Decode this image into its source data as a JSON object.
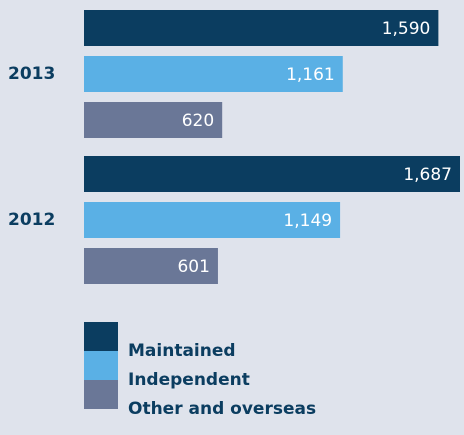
{
  "chart_data": {
    "type": "bar",
    "orientation": "horizontal",
    "categories": [
      "2013",
      "2012"
    ],
    "series": [
      {
        "name": "Maintained",
        "color": "#0b3d60",
        "values": [
          1590,
          1687
        ],
        "value_labels": [
          "1,590",
          "1,687"
        ]
      },
      {
        "name": "Independent",
        "color": "#5ab0e5",
        "values": [
          1161,
          1149
        ],
        "value_labels": [
          "1,161",
          "1,149"
        ]
      },
      {
        "name": "Other and overseas",
        "color": "#6a7797",
        "values": [
          620,
          601
        ],
        "value_labels": [
          "620",
          "601"
        ]
      }
    ]
  }
}
